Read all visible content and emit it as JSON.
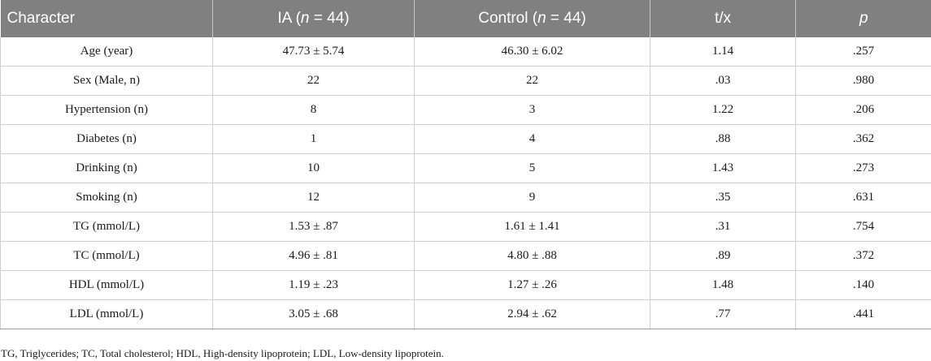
{
  "table": {
    "headers": {
      "character": "Character",
      "ia_prefix": "IA (",
      "ia_n": "n",
      "ia_suffix": " = 44)",
      "control_prefix": "Control (",
      "control_n": "n",
      "control_suffix": " = 44)",
      "tx": "t/x",
      "p": "p"
    },
    "rows": [
      {
        "character": "Age (year)",
        "ia": "47.73 ± 5.74",
        "control": "46.30 ± 6.02",
        "tx": "1.14",
        "p": ".257"
      },
      {
        "character": "Sex (Male, n)",
        "ia": "22",
        "control": "22",
        "tx": ".03",
        "p": ".980"
      },
      {
        "character": "Hypertension (n)",
        "ia": "8",
        "control": "3",
        "tx": "1.22",
        "p": ".206"
      },
      {
        "character": "Diabetes (n)",
        "ia": "1",
        "control": "4",
        "tx": ".88",
        "p": ".362"
      },
      {
        "character": "Drinking (n)",
        "ia": "10",
        "control": "5",
        "tx": "1.43",
        "p": ".273"
      },
      {
        "character": "Smoking (n)",
        "ia": "12",
        "control": "9",
        "tx": ".35",
        "p": ".631"
      },
      {
        "character": "TG (mmol/L)",
        "ia": "1.53 ± .87",
        "control": "1.61 ± 1.41",
        "tx": ".31",
        "p": ".754"
      },
      {
        "character": "TC (mmol/L)",
        "ia": "4.96 ± .81",
        "control": "4.80 ± .88",
        "tx": ".89",
        "p": ".372"
      },
      {
        "character": "HDL (mmol/L)",
        "ia": "1.19 ± .23",
        "control": "1.27 ± .26",
        "tx": "1.48",
        "p": ".140"
      },
      {
        "character": "LDL (mmol/L)",
        "ia": "3.05 ± .68",
        "control": "2.94 ± .62",
        "tx": ".77",
        "p": ".441"
      }
    ]
  },
  "footnote": "TG, Triglycerides; TC, Total cholesterol; HDL, High-density lipoprotein; LDL, Low-density lipoprotein."
}
